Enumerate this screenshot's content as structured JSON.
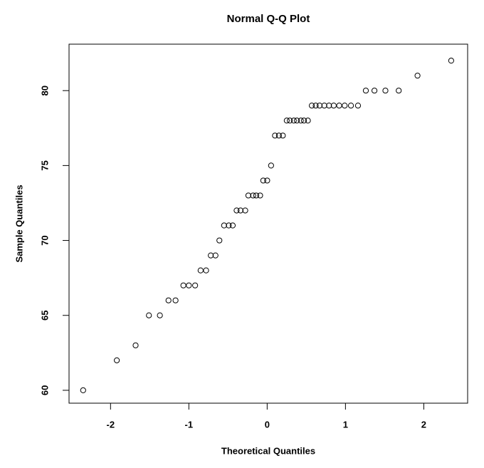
{
  "chart_data": {
    "type": "scatter",
    "title": "Normal Q-Q Plot",
    "x_label": "Theoretical Quantiles",
    "y_label": "Sample Quantiles",
    "x": [
      -2.35,
      -1.92,
      -1.68,
      -1.51,
      -1.37,
      -1.26,
      -1.17,
      -1.07,
      -1.0,
      -0.92,
      -0.85,
      -0.78,
      -0.72,
      -0.66,
      -0.61,
      -0.55,
      -0.49,
      -0.44,
      -0.39,
      -0.34,
      -0.28,
      -0.24,
      -0.18,
      -0.14,
      -0.09,
      -0.05,
      0.0,
      0.05,
      0.1,
      0.15,
      0.2,
      0.25,
      0.29,
      0.34,
      0.38,
      0.43,
      0.47,
      0.52,
      0.57,
      0.62,
      0.67,
      0.73,
      0.79,
      0.85,
      0.92,
      0.99,
      1.07,
      1.16,
      1.26,
      1.37,
      1.51,
      1.68,
      1.92,
      2.35
    ],
    "values": [
      60,
      62,
      63,
      65,
      65,
      66,
      66,
      67,
      67,
      67,
      68,
      68,
      69,
      69,
      70,
      71,
      71,
      71,
      72,
      72,
      72,
      73,
      73,
      73,
      73,
      74,
      74,
      75,
      77,
      77,
      77,
      78,
      78,
      78,
      78,
      78,
      78,
      78,
      79,
      79,
      79,
      79,
      79,
      79,
      79,
      79,
      79,
      79,
      80,
      80,
      80,
      80,
      81,
      82
    ],
    "color": "#000000",
    "xlim": [
      -2.53,
      2.56
    ],
    "ylim": [
      59.14,
      83.1
    ],
    "xticks": [
      -2,
      -1,
      0,
      1,
      2
    ],
    "yticks": [
      60,
      65,
      70,
      75,
      80
    ],
    "grid": false
  }
}
